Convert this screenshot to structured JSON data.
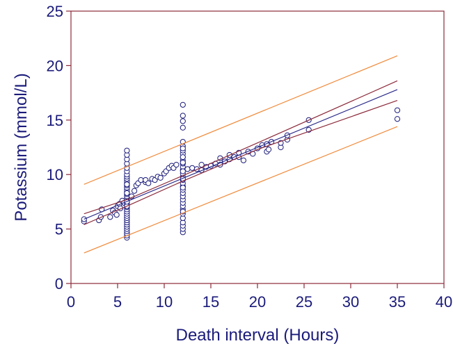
{
  "chart_data": {
    "type": "scatter",
    "title": "",
    "xlabel": "Death interval (Hours)",
    "ylabel": "Potassium (mmol/L)",
    "xlim": [
      0,
      40
    ],
    "ylim": [
      0,
      25
    ],
    "xticks": [
      "0",
      "5",
      "10",
      "15",
      "20",
      "25",
      "30",
      "35",
      "40"
    ],
    "yticks": [
      "0",
      "5",
      "10",
      "15",
      "20",
      "25"
    ],
    "grid": false,
    "legend": "none",
    "colors": {
      "frame": "#8b2a3a",
      "text": "#1a1a7a",
      "points": "#1a1a7a",
      "regression": "#2a2a8a",
      "confidence": "#8b2a3a",
      "prediction": "#f08a3a"
    },
    "series": [
      {
        "kind": "points",
        "x": [
          1.4,
          1.4,
          3,
          3.2,
          3.3,
          4.2,
          4.5,
          4.7,
          4.9,
          5,
          5.2,
          5.3,
          5.5,
          5.7,
          6,
          6,
          6,
          6,
          6,
          6,
          6,
          6,
          6,
          6,
          6,
          6,
          6,
          6,
          6,
          6,
          6,
          6,
          6,
          6,
          6,
          6,
          6,
          6,
          6,
          6,
          6,
          6,
          6,
          6,
          6,
          6,
          6,
          6,
          6,
          6,
          6,
          6,
          6,
          6,
          6.5,
          6.8,
          7,
          7.2,
          7.5,
          8,
          8,
          8.3,
          8.7,
          9,
          9.3,
          9.6,
          10,
          10.2,
          10.5,
          10.8,
          11,
          11.3,
          12,
          12,
          12,
          12,
          12,
          12,
          12,
          12,
          12,
          12,
          12,
          12,
          12,
          12,
          12,
          12,
          12,
          12,
          12,
          12,
          12,
          12,
          12,
          12,
          12,
          12,
          12,
          12,
          12,
          12,
          12,
          12,
          12,
          12,
          12,
          12,
          12,
          12,
          12.5,
          13,
          13.5,
          14,
          14,
          14.5,
          15,
          15.5,
          16,
          16,
          16.5,
          17,
          17,
          17.5,
          18,
          18,
          18.5,
          19,
          19.5,
          20,
          20.5,
          21,
          21,
          21.2,
          21.5,
          22.5,
          22.5,
          23.2,
          23.2,
          25.5,
          25.5,
          35,
          35
        ],
        "y": [
          5.7,
          5.9,
          5.8,
          6.1,
          6.8,
          6.1,
          6.7,
          6.5,
          6.3,
          7.1,
          7.3,
          6.9,
          7.6,
          7.4,
          4.2,
          4.4,
          4.6,
          4.8,
          5,
          5.2,
          5.4,
          5.6,
          5.8,
          6,
          6.2,
          6.4,
          6.6,
          6.8,
          7,
          7.2,
          7.4,
          7.6,
          7.8,
          8,
          8.2,
          8.4,
          8.6,
          8.8,
          9,
          9.2,
          9.4,
          9.6,
          9.8,
          10,
          10.3,
          10.6,
          11,
          11.4,
          11.8,
          12.2,
          7.1,
          7.5,
          8.3,
          9.1,
          8,
          8.5,
          9,
          9.2,
          9.5,
          9.3,
          9.5,
          9.2,
          9.6,
          9.5,
          9.8,
          9.7,
          10.1,
          10.3,
          10.6,
          10.8,
          10.6,
          10.9,
          4.7,
          5,
          5.3,
          5.6,
          6,
          6.4,
          6.8,
          7.1,
          7.4,
          7.7,
          8,
          8.3,
          8.6,
          8.9,
          9.2,
          9.5,
          9.8,
          10.1,
          10.4,
          10.7,
          11,
          11.3,
          11.6,
          11.9,
          12.2,
          12.6,
          13,
          14.3,
          14.9,
          15.4,
          16.4,
          6.6,
          8.8,
          9.6,
          10.3,
          11.1,
          11.6,
          12.4,
          10.5,
          10.6,
          10.5,
          10.4,
          10.9,
          10.7,
          10.8,
          11,
          10.9,
          11.5,
          11.2,
          11.4,
          11.8,
          11.6,
          11.6,
          12,
          11.3,
          12.1,
          11.9,
          12.4,
          12.7,
          12.1,
          12.8,
          12.3,
          13,
          12.5,
          12.9,
          13.2,
          13.6,
          14.1,
          15,
          15.1,
          15.9
        ]
      },
      {
        "kind": "regression",
        "x": [
          1.4,
          35
        ],
        "y": [
          5.9,
          17.8
        ]
      },
      {
        "kind": "confidence-upper",
        "x": [
          1.4,
          6,
          12,
          20,
          35
        ],
        "y": [
          6.4,
          7.7,
          9.9,
          12.9,
          18.6
        ]
      },
      {
        "kind": "confidence-lower",
        "x": [
          1.4,
          6,
          12,
          20,
          35
        ],
        "y": [
          5.4,
          7.1,
          9.4,
          12.3,
          16.8
        ]
      },
      {
        "kind": "prediction-upper",
        "x": [
          1.4,
          35
        ],
        "y": [
          9.1,
          20.9
        ]
      },
      {
        "kind": "prediction-lower",
        "x": [
          1.4,
          35
        ],
        "y": [
          2.8,
          14.4
        ]
      }
    ]
  }
}
